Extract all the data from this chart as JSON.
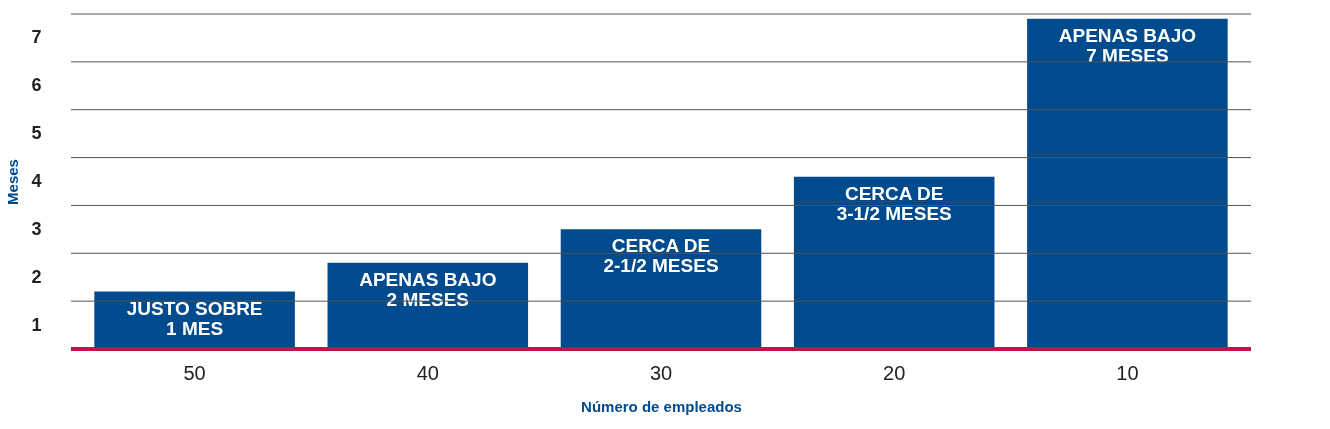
{
  "chart_data": {
    "type": "bar",
    "xlabel": "Número de empleados",
    "ylabel": "Meses",
    "categories": [
      "50",
      "40",
      "30",
      "20",
      "10"
    ],
    "values": [
      1.2,
      1.8,
      2.5,
      3.6,
      6.9
    ],
    "color": "#004b8d",
    "value_labels": [
      "JUSTO SOBRE\n1 MES",
      "APENAS BAJO\n2 MESES",
      "CERCA DE\n2-1/2 MESES",
      "CERCA DE\n3-1/2 MESES",
      "APENAS BAJO\n7 MESES"
    ],
    "ylim": [
      0,
      7
    ],
    "yticks": [
      {
        "value": 0,
        "label": null
      },
      {
        "value": 0.5,
        "label": "1"
      },
      {
        "value": 1,
        "label": null
      },
      {
        "value": 1.5,
        "label": "2"
      },
      {
        "value": 2,
        "label": null
      },
      {
        "value": 2.5,
        "label": "3"
      },
      {
        "value": 3,
        "label": null
      },
      {
        "value": 3.5,
        "label": "4"
      },
      {
        "value": 4,
        "label": null
      },
      {
        "value": 4.5,
        "label": "5"
      },
      {
        "value": 5,
        "label": null
      },
      {
        "value": 5.5,
        "label": "6"
      },
      {
        "value": 6,
        "label": null
      },
      {
        "value": 6.5,
        "label": "7"
      },
      {
        "value": 7,
        "label": null
      }
    ],
    "grid": "y"
  }
}
